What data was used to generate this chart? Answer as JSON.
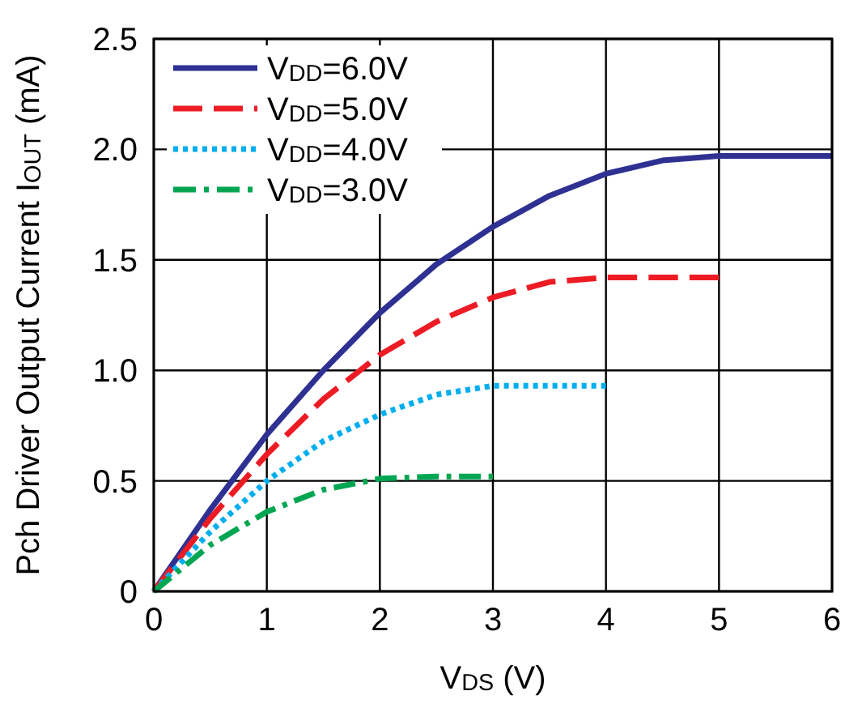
{
  "chart_data": {
    "type": "line",
    "xlabel": "V$_{DS}$ (V)",
    "ylabel": "Pch Driver Output Current I$_{OUT}$ (mA)",
    "xlim": [
      0,
      6
    ],
    "ylim": [
      0,
      2.5
    ],
    "xticks": [
      0,
      1,
      2,
      3,
      4,
      5,
      6
    ],
    "yticks": [
      {
        "value": 0,
        "label": "0"
      },
      {
        "value": 0.5,
        "label": "0.5"
      },
      {
        "value": 1,
        "label": "1.0"
      },
      {
        "value": 1.5,
        "label": "1.5"
      },
      {
        "value": 2,
        "label": "2.0"
      },
      {
        "value": 2.5,
        "label": "2.5"
      }
    ],
    "grid": true,
    "legend": "top left",
    "marker": "none",
    "series": [
      {
        "name": "V$_{DD}$=6.0V",
        "color": "#2e3192",
        "line_style": "solid",
        "x": [
          0,
          0.5,
          1,
          1.5,
          2,
          2.5,
          3,
          3.5,
          4,
          4.5,
          5,
          6
        ],
        "values": [
          0,
          0.37,
          0.71,
          1.0,
          1.26,
          1.48,
          1.65,
          1.79,
          1.89,
          1.95,
          1.97,
          1.97
        ]
      },
      {
        "name": "V$_{DD}$=5.0V",
        "color": "#ed1c24",
        "line_style": "dashed",
        "x": [
          0,
          0.5,
          1,
          1.5,
          2,
          2.5,
          3,
          3.5,
          4,
          5
        ],
        "values": [
          0,
          0.33,
          0.62,
          0.87,
          1.07,
          1.22,
          1.33,
          1.4,
          1.42,
          1.42
        ]
      },
      {
        "name": "V$_{DD}$=4.0V",
        "color": "#00aeef",
        "line_style": "dotted",
        "x": [
          0,
          0.5,
          1,
          1.5,
          2,
          2.5,
          3,
          4
        ],
        "values": [
          0,
          0.27,
          0.5,
          0.68,
          0.8,
          0.89,
          0.93,
          0.93
        ]
      },
      {
        "name": "V$_{DD}$=3.0V",
        "color": "#00a651",
        "line_style": "dashdot",
        "x": [
          0,
          0.5,
          1,
          1.5,
          2,
          2.5,
          3
        ],
        "values": [
          0,
          0.21,
          0.36,
          0.46,
          0.51,
          0.52,
          0.52
        ]
      }
    ]
  }
}
